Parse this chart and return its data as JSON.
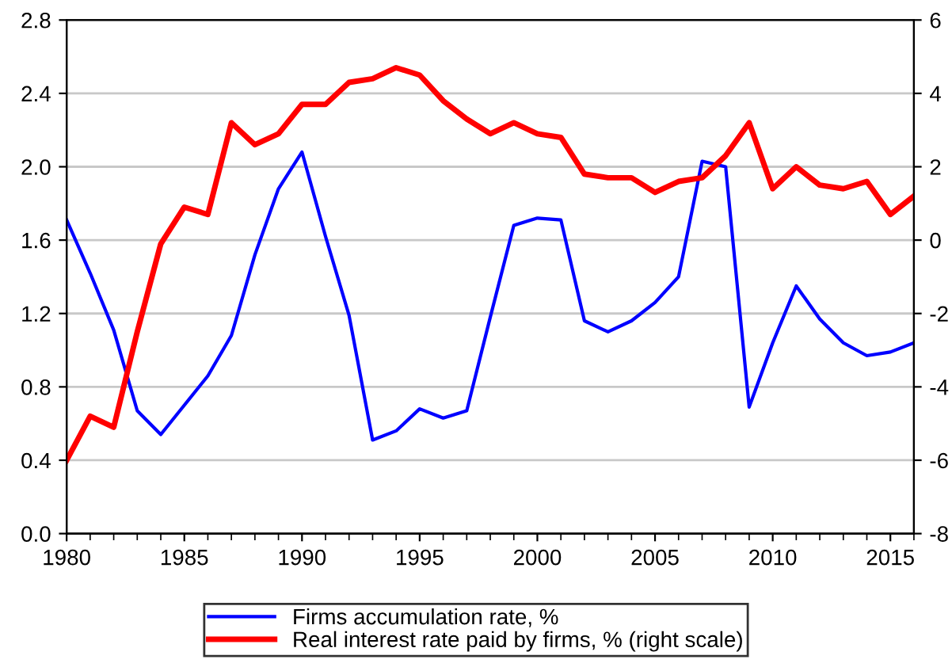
{
  "chart_data": {
    "type": "line",
    "x": [
      1980,
      1981,
      1982,
      1983,
      1984,
      1985,
      1986,
      1987,
      1988,
      1989,
      1990,
      1991,
      1992,
      1993,
      1994,
      1995,
      1996,
      1997,
      1998,
      1999,
      2000,
      2001,
      2002,
      2003,
      2004,
      2005,
      2006,
      2007,
      2008,
      2009,
      2010,
      2011,
      2012,
      2013,
      2014,
      2015,
      2016
    ],
    "series": [
      {
        "name": "Firms accumulation rate, %",
        "color": "#0000ff",
        "values": [
          1.71,
          1.42,
          1.11,
          0.67,
          0.54,
          0.7,
          0.86,
          1.08,
          1.52,
          1.88,
          2.08,
          1.62,
          1.19,
          0.51,
          0.56,
          0.68,
          0.63,
          0.67,
          1.18,
          1.68,
          1.72,
          1.71,
          1.16,
          1.1,
          1.16,
          1.26,
          1.4,
          2.03,
          2.0,
          0.69,
          1.04,
          1.35,
          1.17,
          1.04,
          0.97,
          0.99,
          1.04
        ]
      },
      {
        "name": "Real interest rate paid by firms, % (right scale)",
        "color": "#ff0000",
        "axis": "y2",
        "values": [
          -6.0,
          -4.8,
          -5.1,
          -2.5,
          -0.1,
          0.9,
          0.7,
          3.2,
          2.6,
          2.9,
          3.7,
          3.7,
          4.3,
          4.4,
          4.7,
          4.5,
          3.8,
          3.3,
          2.9,
          3.2,
          2.9,
          2.8,
          1.8,
          1.7,
          1.7,
          1.3,
          1.6,
          1.7,
          2.3,
          3.2,
          1.4,
          2.0,
          1.5,
          1.4,
          1.6,
          0.7,
          1.2
        ]
      }
    ],
    "xlim": [
      1980,
      2016
    ],
    "xticks": [
      1980,
      1985,
      1990,
      1995,
      2000,
      2005,
      2010,
      2015
    ],
    "ylim": [
      0,
      2.8
    ],
    "yticks": [
      {
        "value": 0,
        "label": "0.0"
      },
      0.4,
      0.8,
      1.2,
      1.6,
      {
        "value": 2,
        "label": "2.0"
      },
      2.4,
      2.8
    ],
    "y2lim": [
      -8,
      6
    ],
    "y2ticks": [
      -8,
      -6,
      -4,
      -2,
      0,
      2,
      4,
      6
    ],
    "grid": "y",
    "legend": "bottom",
    "line_style": "solid",
    "marker": "none"
  }
}
